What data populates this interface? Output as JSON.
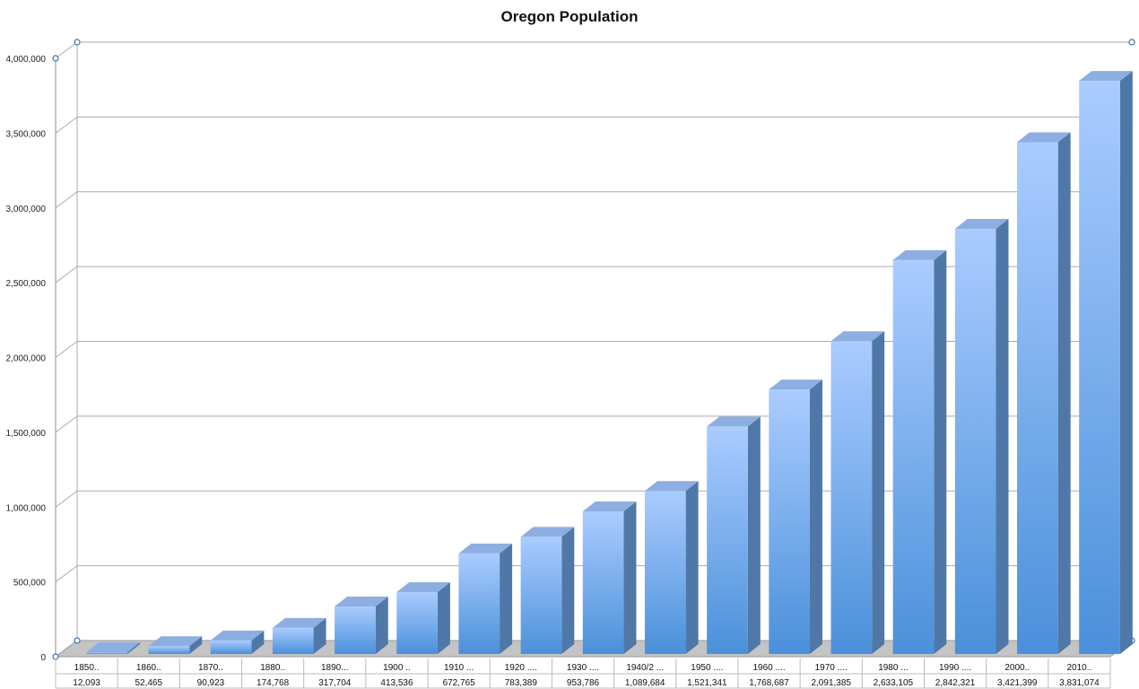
{
  "chart_data": {
    "type": "bar",
    "title": "Oregon Population",
    "xlabel": "",
    "ylabel": "",
    "ylim": [
      0,
      4000000
    ],
    "y_ticks": [
      "0",
      "500,000",
      "1,000,000",
      "1,500,000",
      "2,000,000",
      "2,500,000",
      "3,000,000",
      "3,500,000",
      "4,000,000"
    ],
    "categories": [
      "1850..",
      "1860..",
      "1870..",
      "1880..",
      "1890...",
      "1900 ..",
      "1910 ...",
      "1920 ....",
      "1930 ....",
      "1940/2 ...",
      "1950 ....",
      "1960 ....",
      "1970 ....",
      "1980 ...",
      "1990 ....",
      "2000..",
      "2010.."
    ],
    "value_labels": [
      "12,093",
      "52,465",
      "90,923",
      "174,768",
      "317,704",
      "413,536",
      "672,765",
      "783,389",
      "953,786",
      "1,089,684",
      "1,521,341",
      "1,768,687",
      "2,091,385",
      "2,633,105",
      "2,842,321",
      "3,421,399",
      "3,831,074"
    ],
    "values": [
      12093,
      52465,
      90923,
      174768,
      317704,
      413536,
      672765,
      783389,
      953786,
      1089684,
      1521341,
      1768687,
      2091385,
      2633105,
      2842321,
      3421399,
      3831074
    ],
    "grid": true,
    "colors": {
      "bar_light": "#aaccff",
      "bar_dark": "#4a90da",
      "bar_side": "#4f78a8",
      "bar_top": "#8daee0",
      "grid": "#aaaaaa",
      "floor": "#c4c4c4"
    }
  }
}
